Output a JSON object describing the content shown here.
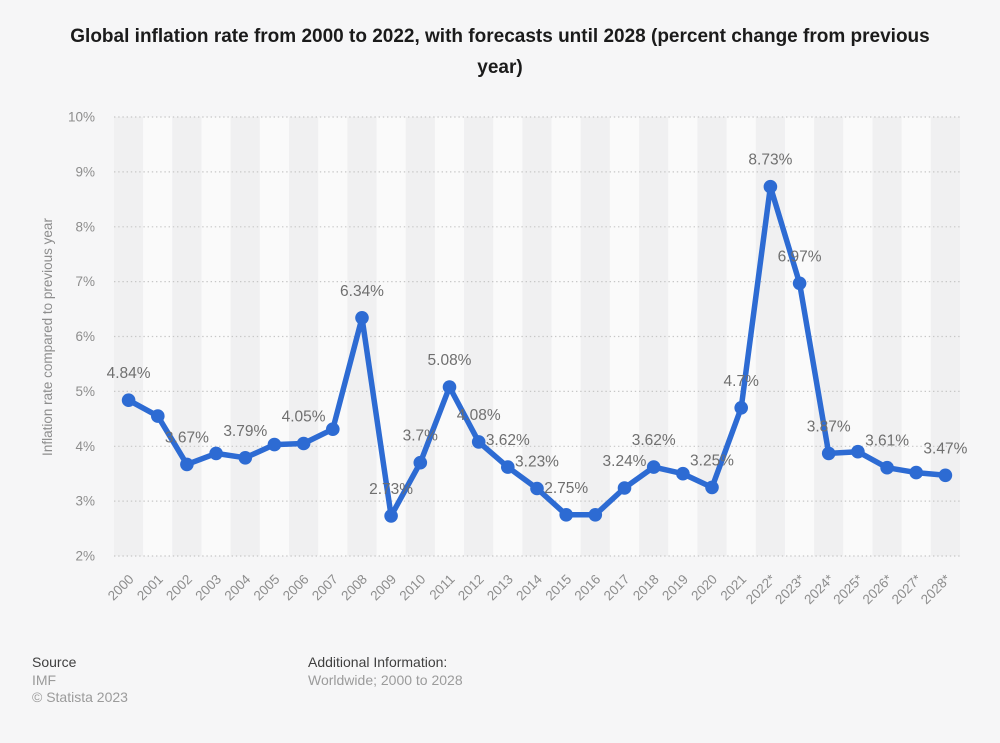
{
  "chart_data": {
    "type": "line",
    "title": "Global inflation rate from 2000 to 2022, with forecasts until 2028 (percent change from previous year)",
    "xlabel": "",
    "ylabel": "Inflation rate compared to previous year",
    "ylim": [
      2,
      10
    ],
    "yticks": [
      "2%",
      "3%",
      "4%",
      "5%",
      "6%",
      "7%",
      "8%",
      "9%",
      "10%"
    ],
    "grid": "horizontal-dotted",
    "legend_position": "none",
    "x_categories": [
      "2000",
      "2001",
      "2002",
      "2003",
      "2004",
      "2005",
      "2006",
      "2007",
      "2008",
      "2009",
      "2010",
      "2011",
      "2012",
      "2013",
      "2014",
      "2015",
      "2016",
      "2017",
      "2018",
      "2019",
      "2020",
      "2021",
      "2022*",
      "2023*",
      "2024*",
      "2025*",
      "2026*",
      "2027*",
      "2028*"
    ],
    "series": [
      {
        "name": "Global inflation rate (percent change from previous year)",
        "values": [
          4.84,
          4.55,
          3.67,
          3.87,
          3.79,
          4.03,
          4.05,
          4.31,
          6.34,
          2.73,
          3.7,
          5.08,
          4.08,
          3.62,
          3.23,
          2.75,
          2.75,
          3.24,
          3.62,
          3.5,
          3.25,
          4.7,
          8.73,
          6.97,
          3.87,
          3.9,
          3.61,
          3.52,
          3.47
        ],
        "point_labels": [
          "4.84%",
          null,
          "3.67%",
          null,
          "3.79%",
          null,
          "4.05%",
          null,
          "6.34%",
          "2.73%",
          "3.7%",
          "5.08%",
          "4.08%",
          "3.62%",
          "3.23%",
          "2.75%",
          null,
          "3.24%",
          "3.62%",
          null,
          "3.25%",
          "4.7%",
          "8.73%",
          "6.97%",
          "3.87%",
          null,
          "3.61%",
          null,
          "3.47%"
        ]
      }
    ],
    "colors": {
      "line": "#2d6bd3",
      "point": "#2d6bd3",
      "point_label_text": "#6f6f6f",
      "axis_text": "#8d8d8d",
      "gridline": "#c7c7c7",
      "band_dark": "#f0f0f1",
      "band_light": "#fafafa",
      "background": "#f6f6f7",
      "title_text": "#1b1b1b"
    }
  },
  "footer": {
    "source_heading": "Source",
    "source_name": "IMF",
    "copyright": "© Statista 2023",
    "additional_heading": "Additional Information:",
    "additional_text": "Worldwide; 2000 to 2028"
  }
}
